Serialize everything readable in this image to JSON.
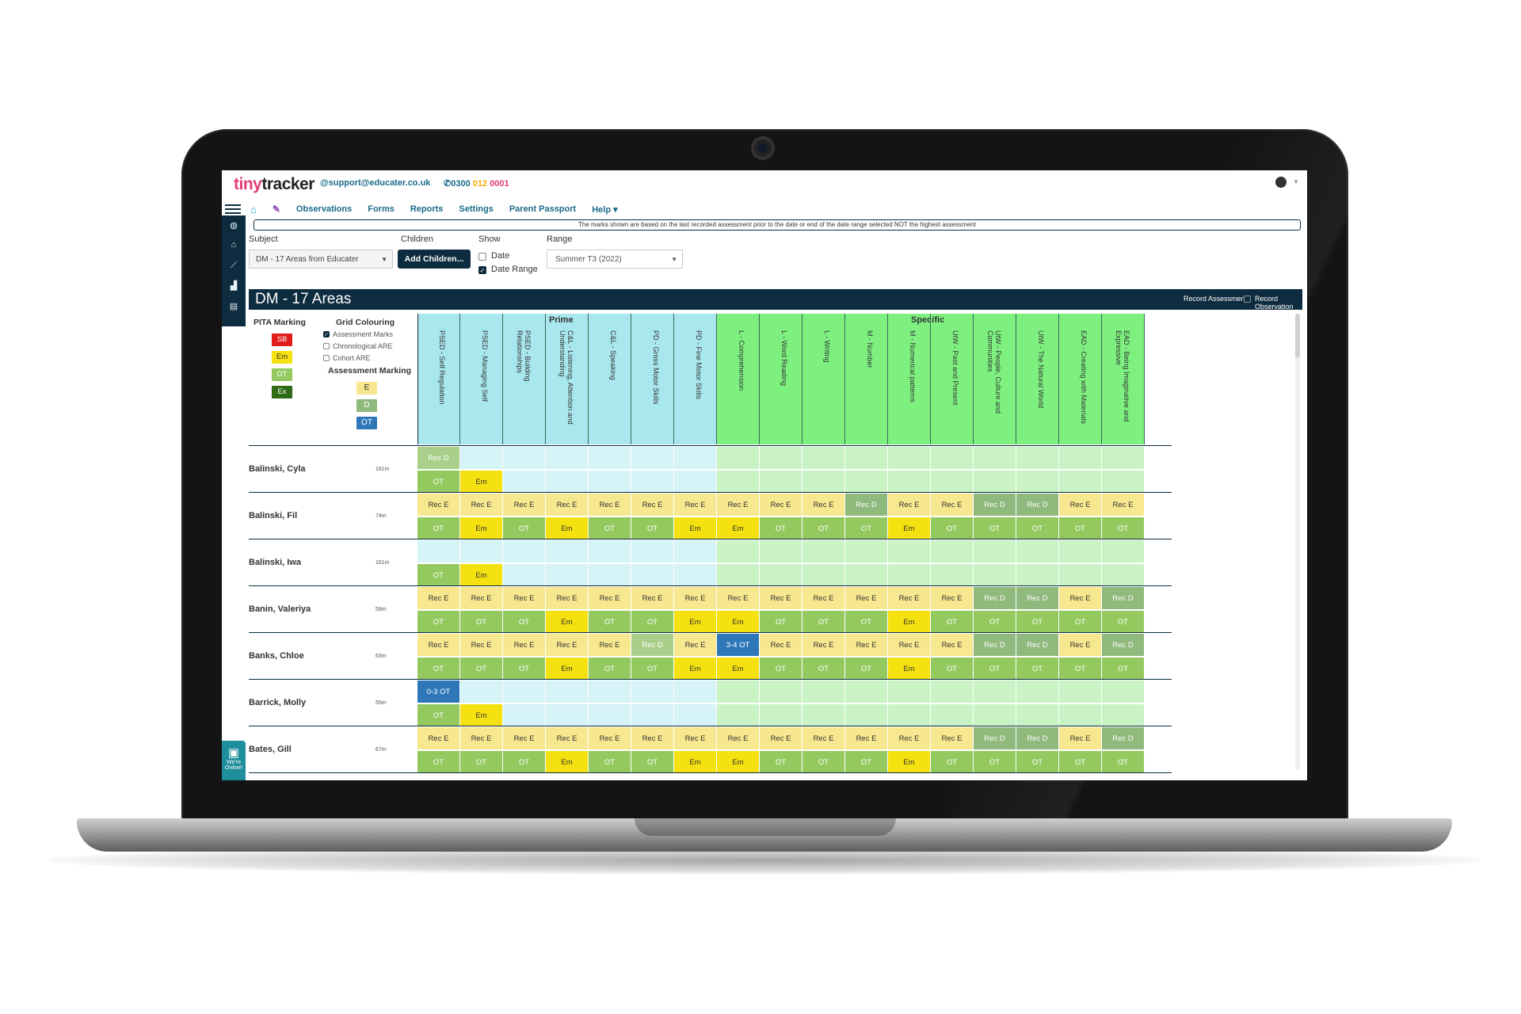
{
  "app": {
    "logo": {
      "a": "tiny",
      "b": "tracker"
    },
    "email": "@support@educater.co.uk",
    "phone": {
      "prefix": "0300",
      "mid": "012",
      "end": "0001"
    }
  },
  "nav": {
    "items": [
      "Observations",
      "Forms",
      "Reports",
      "Settings",
      "Parent Passport",
      "Help ▾"
    ]
  },
  "notice": "The marks shown are based on the last recorded assessment prior to the date or end of the date range selected NOT the highest assessment",
  "filters": {
    "subject_label": "Subject",
    "subject_value": "DM - 17 Areas from Educater",
    "children_label": "Children",
    "add_children": "Add Children...",
    "show_label": "Show",
    "show_date": "Date",
    "show_date_range": "Date Range",
    "range_label": "Range",
    "range_value": "Summer T3 (2022)"
  },
  "title": {
    "text": "DM - 17 Areas",
    "record_assessment": "Record Assessment",
    "record_observation": "Record Observation"
  },
  "legend": {
    "pita_title": "PITA Marking",
    "pita": [
      "SB",
      "Em",
      "OT",
      "Ex"
    ],
    "grid_title": "Grid Colouring",
    "grid_options": [
      "Assessment Marks",
      "Chronological ARE",
      "Cohort ARE"
    ],
    "assess_title": "Assessment Marking",
    "assess": [
      "E",
      "D",
      "OT"
    ],
    "colors": {
      "SB": "#e21b1b",
      "Em": "#f5e10f",
      "OT": "#93c95f",
      "Ex": "#2e6b14",
      "E": "#f7e78e",
      "D": "#8fb97d",
      "OT2": "#2e78b9"
    }
  },
  "groups": {
    "prime": "Prime",
    "specific": "Specific"
  },
  "columns": [
    "PSED - Self Regulation",
    "PSED - Managing Self",
    "PSED - Building Relationships",
    "C&L - Listening, Attention and Understanding",
    "C&L - Speaking",
    "PD - Gross Motor Skills",
    "PD - Fine Motor Skills",
    "L - Comprehension",
    "L - Word Reading",
    "L - Writing",
    "M - Number",
    "M - Numerical patterns",
    "UtW - Past and Present",
    "UtW - People, Culture and Communities",
    "UtW - The Natural World",
    "EAD - Creating with Materials",
    "EAD - Being Imaginative and Expressive"
  ],
  "children": [
    {
      "name": "Balinski, Cyla",
      "age": "161m",
      "top": [
        "Rec D",
        "",
        "",
        "",
        "",
        "",
        "",
        "",
        "",
        "",
        "",
        "",
        "",
        "",
        "",
        "",
        ""
      ],
      "bot": [
        "OT",
        "Em",
        "",
        "",
        "",
        "",
        "",
        "",
        "",
        "",
        "",
        "",
        "",
        "",
        "",
        "",
        ""
      ]
    },
    {
      "name": "Balinski, Fil",
      "age": "74m",
      "top": [
        "Rec E",
        "Rec E",
        "Rec E",
        "Rec E",
        "Rec E",
        "Rec E",
        "Rec E",
        "Rec E",
        "Rec E",
        "Rec E",
        "Rec D",
        "Rec E",
        "Rec E",
        "Rec D",
        "Rec D",
        "Rec E",
        "Rec E"
      ],
      "bot": [
        "OT",
        "Em",
        "OT",
        "Em",
        "OT",
        "OT",
        "Em",
        "Em",
        "OT",
        "OT",
        "OT",
        "Em",
        "OT",
        "OT",
        "OT",
        "OT",
        "OT"
      ]
    },
    {
      "name": "Balinski, Iwa",
      "age": "161m",
      "top": [
        "",
        "",
        "",
        "",
        "",
        "",
        "",
        "",
        "",
        "",
        "",
        "",
        "",
        "",
        "",
        "",
        ""
      ],
      "bot": [
        "OT",
        "Em",
        "",
        "",
        "",
        "",
        "",
        "",
        "",
        "",
        "",
        "",
        "",
        "",
        "",
        "",
        ""
      ]
    },
    {
      "name": "Banin, Valeriya",
      "age": "58m",
      "top": [
        "Rec E",
        "Rec E",
        "Rec E",
        "Rec E",
        "Rec E",
        "Rec E",
        "Rec E",
        "Rec E",
        "Rec E",
        "Rec E",
        "Rec E",
        "Rec E",
        "Rec E",
        "Rec D",
        "Rec D",
        "Rec E",
        "Rec D"
      ],
      "bot": [
        "OT",
        "OT",
        "OT",
        "Em",
        "OT",
        "OT",
        "Em",
        "Em",
        "OT",
        "OT",
        "OT",
        "Em",
        "OT",
        "OT",
        "OT",
        "OT",
        "OT"
      ]
    },
    {
      "name": "Banks, Chloe",
      "age": "63m",
      "top": [
        "Rec E",
        "Rec E",
        "Rec E",
        "Rec E",
        "Rec E",
        "Rec D",
        "Rec E",
        "3-4 OT",
        "Rec E",
        "Rec E",
        "Rec E",
        "Rec E",
        "Rec E",
        "Rec D",
        "Rec D",
        "Rec E",
        "Rec D"
      ],
      "bot": [
        "OT",
        "OT",
        "OT",
        "Em",
        "OT",
        "OT",
        "Em",
        "Em",
        "OT",
        "OT",
        "OT",
        "Em",
        "OT",
        "OT",
        "OT",
        "OT",
        "OT"
      ]
    },
    {
      "name": "Barrick, Molly",
      "age": "55m",
      "top": [
        "0-3 OT",
        "",
        "",
        "",
        "",
        "",
        "",
        "",
        "",
        "",
        "",
        "",
        "",
        "",
        "",
        "",
        ""
      ],
      "bot": [
        "OT",
        "Em",
        "",
        "",
        "",
        "",
        "",
        "",
        "",
        "",
        "",
        "",
        "",
        "",
        "",
        "",
        ""
      ]
    },
    {
      "name": "Bates, Gill",
      "age": "67m",
      "top": [
        "Rec E",
        "Rec E",
        "Rec E",
        "Rec E",
        "Rec E",
        "Rec E",
        "Rec E",
        "Rec E",
        "Rec E",
        "Rec E",
        "Rec E",
        "Rec E",
        "Rec E",
        "Rec D",
        "Rec D",
        "Rec E",
        "Rec D"
      ],
      "bot": [
        "OT",
        "OT",
        "OT",
        "Em",
        "OT",
        "OT",
        "Em",
        "Em",
        "OT",
        "OT",
        "OT",
        "Em",
        "OT",
        "OT",
        "OT",
        "OT",
        "OT"
      ]
    }
  ],
  "chat": "We're Online!"
}
